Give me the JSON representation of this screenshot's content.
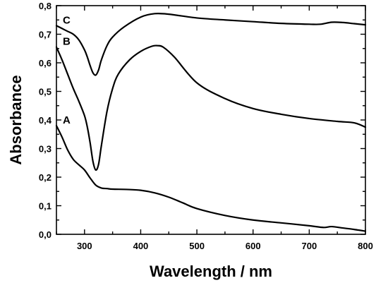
{
  "chart_data": {
    "type": "line",
    "xlabel": "Wavelength / nm",
    "ylabel": "Absorbance",
    "xlim": [
      250,
      800
    ],
    "ylim": [
      0.0,
      0.8
    ],
    "grid": false,
    "x_ticks": [
      300,
      400,
      500,
      600,
      700,
      800
    ],
    "x_tick_labels": [
      "300",
      "400",
      "500",
      "600",
      "700",
      "800"
    ],
    "y_ticks": [
      0.0,
      0.1,
      0.2,
      0.3,
      0.4,
      0.5,
      0.6,
      0.7,
      0.8
    ],
    "y_tick_labels": [
      "0,0",
      "0,1",
      "0,2",
      "0,3",
      "0,4",
      "0,5",
      "0,6",
      "0,7",
      "0,8"
    ],
    "series": [
      {
        "name": "A",
        "x": [
          250,
          260,
          270,
          280,
          290,
          300,
          310,
          320,
          330,
          340,
          350,
          375,
          400,
          425,
          450,
          475,
          500,
          550,
          600,
          650,
          700,
          725,
          740,
          760,
          780,
          800
        ],
        "y": [
          0.38,
          0.34,
          0.295,
          0.262,
          0.243,
          0.225,
          0.197,
          0.172,
          0.162,
          0.16,
          0.158,
          0.157,
          0.154,
          0.145,
          0.13,
          0.11,
          0.09,
          0.066,
          0.05,
          0.04,
          0.03,
          0.024,
          0.027,
          0.022,
          0.017,
          0.011
        ]
      },
      {
        "name": "B",
        "x": [
          250,
          260,
          270,
          280,
          290,
          300,
          305,
          310,
          315,
          320,
          325,
          330,
          340,
          350,
          360,
          380,
          400,
          420,
          430,
          440,
          460,
          500,
          550,
          600,
          650,
          700,
          750,
          780,
          800
        ],
        "y": [
          0.655,
          0.61,
          0.56,
          0.51,
          0.465,
          0.415,
          0.375,
          0.32,
          0.255,
          0.225,
          0.245,
          0.31,
          0.43,
          0.51,
          0.56,
          0.61,
          0.64,
          0.658,
          0.66,
          0.655,
          0.62,
          0.53,
          0.475,
          0.44,
          0.42,
          0.405,
          0.395,
          0.39,
          0.375
        ]
      },
      {
        "name": "C",
        "x": [
          250,
          260,
          270,
          280,
          290,
          300,
          305,
          310,
          315,
          320,
          325,
          330,
          340,
          350,
          370,
          400,
          425,
          450,
          500,
          550,
          600,
          650,
          700,
          720,
          740,
          760,
          780,
          800
        ],
        "y": [
          0.73,
          0.72,
          0.71,
          0.7,
          0.68,
          0.645,
          0.62,
          0.59,
          0.565,
          0.557,
          0.575,
          0.61,
          0.66,
          0.69,
          0.725,
          0.76,
          0.772,
          0.77,
          0.757,
          0.75,
          0.744,
          0.738,
          0.735,
          0.735,
          0.742,
          0.741,
          0.737,
          0.733
        ]
      }
    ]
  }
}
